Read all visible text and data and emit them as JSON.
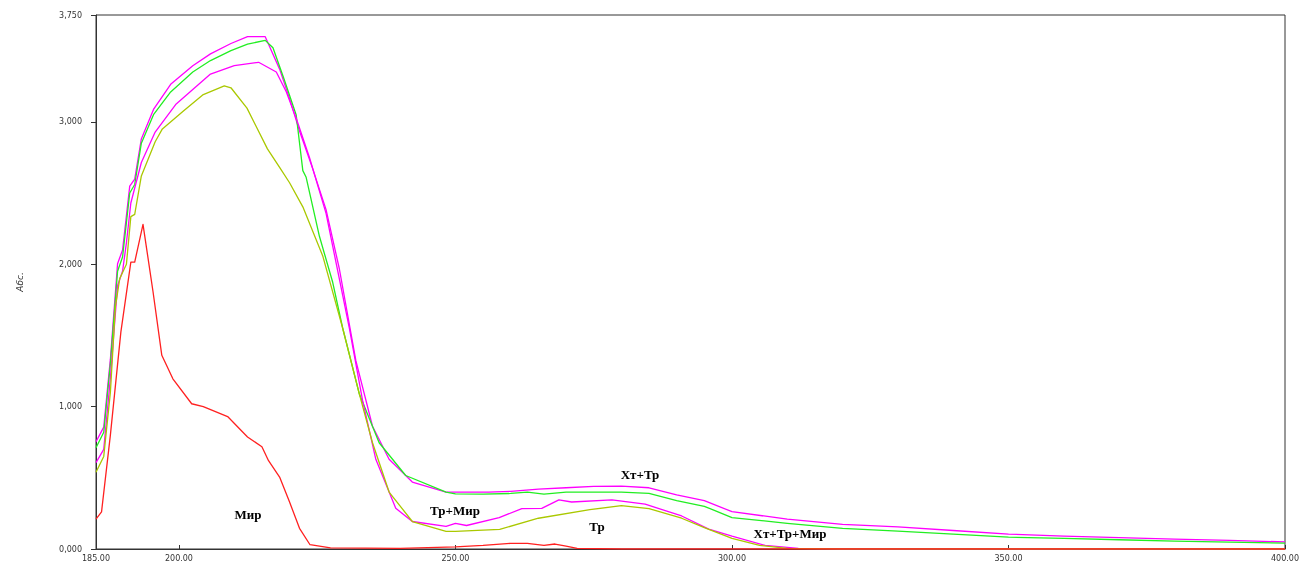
{
  "chart_data": {
    "type": "line",
    "ylabel": "Абс.",
    "xlim": [
      185,
      400
    ],
    "ylim": [
      0,
      3750
    ],
    "xticks": [
      {
        "value": 185,
        "label": "185.00"
      },
      {
        "value": 200,
        "label": "200.00"
      },
      {
        "value": 250,
        "label": "250.00"
      },
      {
        "value": 300,
        "label": "300.00"
      },
      {
        "value": 350,
        "label": "350.00"
      },
      {
        "value": 400,
        "label": "400.00"
      }
    ],
    "yticks": [
      {
        "value": 0,
        "label": "0,000"
      },
      {
        "value": 1000,
        "label": "1,000"
      },
      {
        "value": 2000,
        "label": "2,000"
      },
      {
        "value": 3000,
        "label": "3,000"
      },
      {
        "value": 3750,
        "label": "3,750"
      }
    ],
    "grid": false,
    "series": [
      {
        "color": "#ff00ff",
        "x": [
          185,
          186.4,
          187.6,
          188.9,
          189.8,
          191.1,
          192,
          193.2,
          195.4,
          198.5,
          202.5,
          205.7,
          209.4,
          212.4,
          215.6,
          218.2,
          220,
          221.8,
          224.1,
          226.6,
          229,
          232,
          235,
          238,
          242.2,
          248.3,
          252,
          256,
          260,
          265,
          270,
          275,
          280,
          285,
          290,
          295,
          300,
          310,
          320,
          330,
          340,
          350,
          360,
          370,
          380,
          390,
          400
        ],
        "values": [
          753,
          856,
          1333,
          2003,
          2100,
          2548,
          2597,
          2880,
          3087,
          3263,
          3394,
          3477,
          3550,
          3598,
          3598,
          3370,
          3163,
          2935,
          2680,
          2383,
          1968,
          1321,
          862,
          630,
          470,
          400,
          400,
          400,
          405,
          420,
          430,
          440,
          442,
          430,
          380,
          340,
          262,
          210,
          173,
          155,
          130,
          105,
          90,
          80,
          70,
          60,
          50
        ]
      },
      {
        "color": "#22ee22",
        "x": [
          185,
          186.4,
          187.6,
          188.9,
          189.8,
          191.1,
          192,
          193.2,
          195.4,
          198.5,
          202.5,
          205.7,
          209.4,
          212.4,
          215.6,
          217,
          219,
          221.2,
          222.4,
          223,
          225.4,
          227.8,
          229.6,
          232.6,
          236.2,
          241,
          248.3,
          250,
          255,
          260,
          263,
          266,
          270,
          280,
          285,
          290,
          295,
          300,
          310,
          320,
          330,
          340,
          350,
          360,
          370,
          380,
          390,
          400
        ],
        "values": [
          711,
          820,
          1300,
          1950,
          2050,
          2500,
          2560,
          2850,
          3050,
          3210,
          3350,
          3430,
          3500,
          3545,
          3572,
          3520,
          3300,
          3048,
          2657,
          2610,
          2196,
          1873,
          1552,
          1091,
          746,
          516,
          400,
          387,
          385,
          390,
          400,
          385,
          400,
          400,
          390,
          340,
          300,
          221,
          180,
          145,
          125,
          105,
          83,
          75,
          65,
          55,
          48,
          41
        ]
      },
      {
        "color": "#ff00ff",
        "x": [
          185,
          186.4,
          187.6,
          188.9,
          189.8,
          190.5,
          191.3,
          193.2,
          195.7,
          199.4,
          205.7,
          210,
          214.4,
          217.6,
          219.4,
          221.2,
          223.6,
          226.6,
          229.6,
          230.8,
          233.2,
          235.6,
          239.2,
          242.2,
          248.3,
          250,
          252,
          257.9,
          262,
          265.6,
          268.7,
          271,
          278.3,
          284.3,
          290.9,
          295.8,
          300,
          306,
          312,
          320,
          400
        ],
        "values": [
          607,
          700,
          1200,
          1850,
          1950,
          2150,
          2430,
          2714,
          2928,
          3121,
          3335,
          3394,
          3418,
          3350,
          3211,
          3025,
          2749,
          2357,
          1782,
          1552,
          1043,
          630,
          286,
          193,
          159,
          180,
          165,
          221,
          283,
          285,
          345,
          330,
          345,
          315,
          232,
          140,
          90,
          25,
          5,
          0,
          0
        ]
      },
      {
        "color": "#aac800",
        "x": [
          185,
          186.4,
          187.6,
          188.5,
          189.3,
          190.5,
          191.3,
          192,
          193.2,
          195.7,
          197,
          200.7,
          204.4,
          208.2,
          209.4,
          212.3,
          216,
          218.2,
          220,
          222.4,
          226,
          229.6,
          232.6,
          235,
          238,
          242.2,
          248.3,
          250,
          258,
          265,
          274.3,
          280,
          285,
          290.9,
          295,
          300,
          305,
          310,
          320,
          400
        ],
        "values": [
          539,
          650,
          1100,
          1700,
          1900,
          2000,
          2334,
          2350,
          2620,
          2860,
          2950,
          3073,
          3191,
          3252,
          3239,
          3096,
          2810,
          2680,
          2572,
          2403,
          2058,
          1552,
          1091,
          746,
          400,
          193,
          124,
          124,
          138,
          216,
          276,
          304,
          283,
          216,
          150,
          75,
          25,
          5,
          0,
          0
        ]
      },
      {
        "color": "#ff2020",
        "x": [
          185,
          186,
          187.6,
          189.5,
          191.3,
          192,
          193.5,
          195.3,
          196.9,
          198.9,
          202.3,
          204.4,
          208.8,
          212.4,
          215,
          216.2,
          218.2,
          220,
          221.8,
          223.7,
          227.4,
          240,
          250,
          255,
          260,
          263,
          266,
          268,
          270,
          272,
          280,
          400
        ],
        "values": [
          210,
          260,
          800,
          1525,
          2015,
          2015,
          2280,
          1810,
          1360,
          1195,
          1020,
          1000,
          930,
          787,
          718,
          620,
          505,
          330,
          145,
          30,
          8,
          5,
          15,
          25,
          40,
          40,
          25,
          35,
          20,
          5,
          0,
          0
        ]
      }
    ],
    "annotations": [
      "Хт+Тр",
      "Тр+Мир",
      "Тр",
      "Хт+Тр+Мир",
      "Мир"
    ]
  }
}
